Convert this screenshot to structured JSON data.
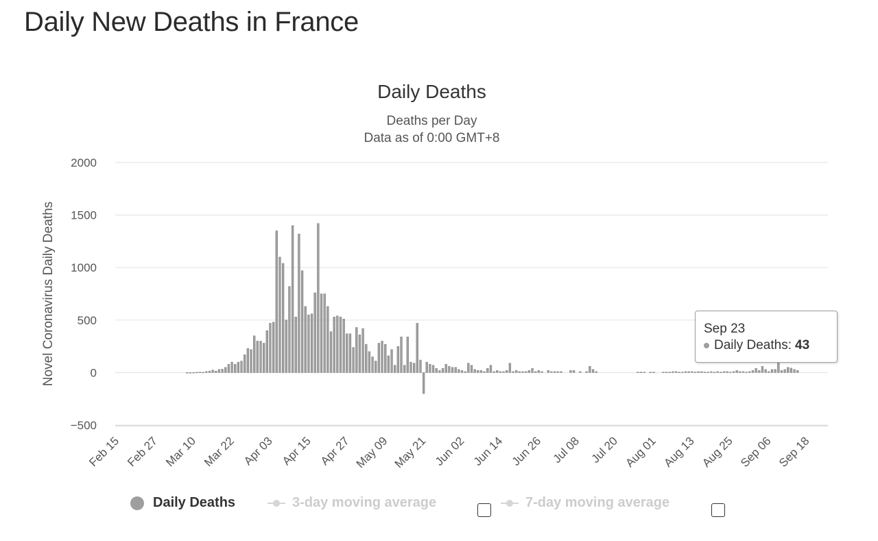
{
  "page": {
    "heading": "Daily New Deaths in France"
  },
  "tooltip": {
    "date": "Sep 23",
    "series_label": "Daily Deaths:",
    "value": "43"
  },
  "legend": {
    "items": [
      {
        "label": "Daily Deaths",
        "active": true
      },
      {
        "label": "3-day moving average",
        "active": false
      },
      {
        "label": "7-day moving average",
        "active": false
      }
    ]
  },
  "colors": {
    "bar": "#a0a0a0",
    "bar_stroke": "#6e6e6e",
    "grid": "#e6e6e6",
    "inactive": "#cccccc"
  },
  "chart_data": {
    "type": "bar",
    "title": "Daily Deaths",
    "subtitle": [
      "Deaths per Day",
      "Data as of 0:00 GMT+8"
    ],
    "ylabel": "Novel Coronavirus Daily Deaths",
    "xlabel": "",
    "ylim": [
      -500,
      2000
    ],
    "yticks": [
      2000,
      1500,
      1000,
      500,
      0,
      -500
    ],
    "grid": true,
    "x_start": "Feb 15",
    "x_end": "Sep 24",
    "xticks": [
      "Feb 15",
      "Feb 27",
      "Mar 10",
      "Mar 22",
      "Apr 03",
      "Apr 15",
      "Apr 27",
      "May 09",
      "May 21",
      "Jun 02",
      "Jun 14",
      "Jun 26",
      "Jul 08",
      "Jul 20",
      "Aug 01",
      "Aug 13",
      "Aug 25",
      "Sep 06",
      "Sep 18"
    ],
    "series": [
      {
        "name": "Daily Deaths",
        "values": [
          0,
          0,
          0,
          0,
          0,
          0,
          0,
          0,
          0,
          0,
          0,
          0,
          0,
          0,
          0,
          0,
          0,
          0,
          0,
          0,
          0,
          0,
          1,
          1,
          2,
          3,
          5,
          3,
          11,
          15,
          25,
          15,
          30,
          33,
          50,
          80,
          100,
          80,
          100,
          110,
          170,
          230,
          220,
          350,
          300,
          300,
          280,
          400,
          470,
          480,
          1350,
          1100,
          1040,
          500,
          820,
          1400,
          530,
          1320,
          970,
          630,
          550,
          560,
          760,
          1420,
          750,
          750,
          630,
          390,
          530,
          540,
          530,
          510,
          370,
          370,
          240,
          430,
          360,
          420,
          270,
          200,
          150,
          110,
          280,
          300,
          270,
          160,
          220,
          70,
          250,
          340,
          70,
          340,
          100,
          90,
          470,
          120,
          -200,
          100,
          80,
          70,
          40,
          20,
          40,
          80,
          60,
          50,
          50,
          30,
          20,
          10,
          90,
          70,
          30,
          20,
          20,
          10,
          40,
          70,
          10,
          20,
          10,
          10,
          20,
          90,
          10,
          20,
          10,
          10,
          10,
          20,
          40,
          10,
          20,
          10,
          0,
          20,
          10,
          10,
          10,
          10,
          0,
          0,
          20,
          20,
          0,
          10,
          0,
          10,
          60,
          30,
          10,
          0,
          0,
          0,
          0,
          0,
          0,
          0,
          0,
          0,
          0,
          0,
          0,
          5,
          5,
          5,
          0,
          5,
          5,
          0,
          0,
          5,
          5,
          5,
          10,
          10,
          5,
          5,
          10,
          10,
          10,
          5,
          10,
          10,
          5,
          5,
          10,
          5,
          10,
          5,
          10,
          10,
          5,
          10,
          20,
          10,
          10,
          5,
          10,
          20,
          40,
          20,
          60,
          30,
          10,
          30,
          30,
          100,
          20,
          30,
          50,
          43,
          30,
          20
        ]
      }
    ]
  }
}
